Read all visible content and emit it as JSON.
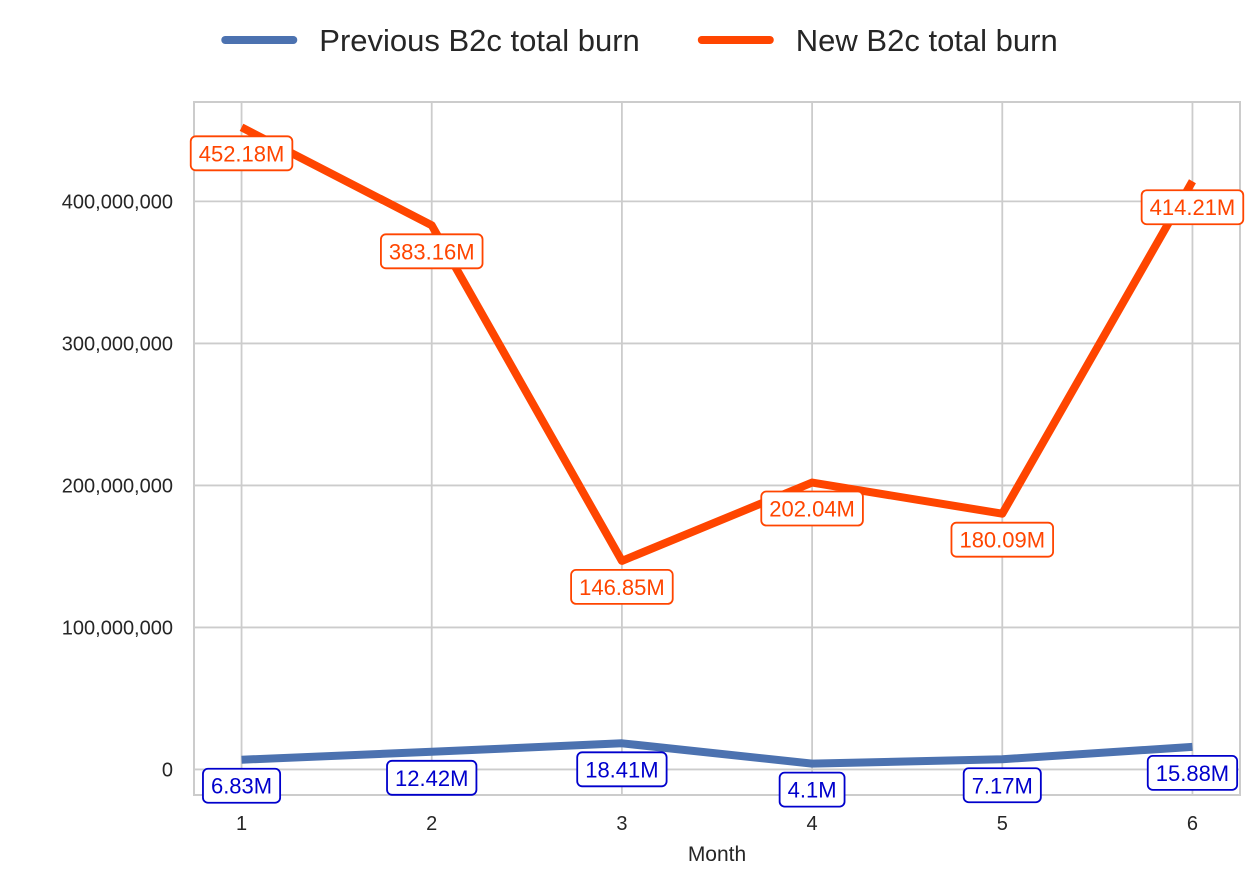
{
  "chart_data": {
    "type": "line",
    "x": [
      1,
      2,
      3,
      4,
      5,
      6
    ],
    "xlabel": "Month",
    "ylabel": "",
    "ylim": [
      -18000000,
      470000000
    ],
    "xlim": [
      0.75,
      6.25
    ],
    "yticks": [
      0,
      100000000,
      200000000,
      300000000,
      400000000
    ],
    "ytick_labels": [
      "0",
      "100,000,000",
      "200,000,000",
      "300,000,000",
      "400,000,000"
    ],
    "xtick_labels": [
      "1",
      "2",
      "3",
      "4",
      "5",
      "6"
    ],
    "grid": true,
    "legend_position": "top-center",
    "series": [
      {
        "name": "Previous B2c total burn",
        "color": "#4c72b0",
        "label_color": "#0000cc",
        "values": [
          6830000,
          12420000,
          18410000,
          4100000,
          7170000,
          15880000
        ],
        "labels": [
          "6.83M",
          "12.42M",
          "18.41M",
          "4.1M",
          "7.17M",
          "15.88M"
        ]
      },
      {
        "name": "New B2c total burn",
        "color": "#ff4500",
        "label_color": "#ff4500",
        "values": [
          452180000,
          383160000,
          146850000,
          202040000,
          180090000,
          414210000
        ],
        "labels": [
          "452.18M",
          "383.16M",
          "146.85M",
          "202.04M",
          "180.09M",
          "414.21M"
        ]
      }
    ]
  }
}
